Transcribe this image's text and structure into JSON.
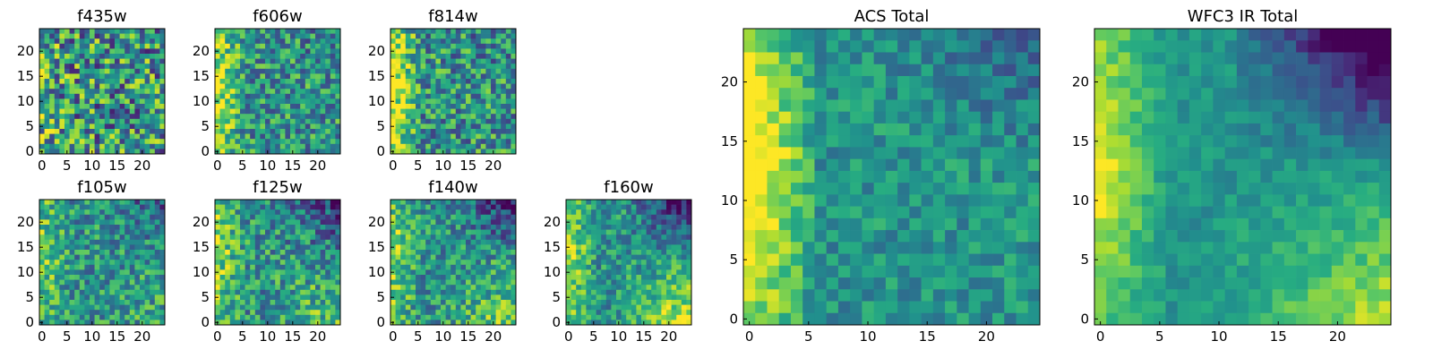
{
  "colormap": "viridis",
  "chart_data": [
    {
      "type": "heatmap",
      "title": "f435w",
      "xticks": [
        "0",
        "5",
        "10",
        "15",
        "20"
      ],
      "yticks": [
        "0",
        "5",
        "10",
        "15",
        "20"
      ],
      "xlim": [
        0,
        25
      ],
      "ylim": [
        0,
        25
      ],
      "grid_size": 25,
      "pattern": {
        "seed": 11,
        "bright_left": 0.1,
        "bright_bottomright": 0.0,
        "dark_topright": 0.0,
        "noise": 0.42
      }
    },
    {
      "type": "heatmap",
      "title": "f606w",
      "xticks": [
        "0",
        "5",
        "10",
        "15",
        "20"
      ],
      "yticks": [
        "0",
        "5",
        "10",
        "15",
        "20"
      ],
      "xlim": [
        0,
        25
      ],
      "ylim": [
        0,
        25
      ],
      "grid_size": 25,
      "pattern": {
        "seed": 23,
        "bright_left": 0.35,
        "bright_bottomright": 0.0,
        "dark_topright": 0.05,
        "noise": 0.3
      }
    },
    {
      "type": "heatmap",
      "title": "f814w",
      "xticks": [
        "0",
        "5",
        "10",
        "15",
        "20"
      ],
      "yticks": [
        "0",
        "5",
        "10",
        "15",
        "20"
      ],
      "xlim": [
        0,
        25
      ],
      "ylim": [
        0,
        25
      ],
      "grid_size": 25,
      "pattern": {
        "seed": 37,
        "bright_left": 0.4,
        "bright_bottomright": 0.0,
        "dark_topright": 0.05,
        "noise": 0.32
      }
    },
    {
      "type": "heatmap",
      "title": "f105w",
      "xticks": [
        "0",
        "5",
        "10",
        "15",
        "20"
      ],
      "yticks": [
        "0",
        "5",
        "10",
        "15",
        "20"
      ],
      "xlim": [
        0,
        25
      ],
      "ylim": [
        0,
        25
      ],
      "grid_size": 25,
      "pattern": {
        "seed": 41,
        "bright_left": 0.2,
        "bright_bottomright": 0.05,
        "dark_topright": 0.15,
        "noise": 0.26
      }
    },
    {
      "type": "heatmap",
      "title": "f125w",
      "xticks": [
        "0",
        "5",
        "10",
        "15",
        "20"
      ],
      "yticks": [
        "0",
        "5",
        "10",
        "15",
        "20"
      ],
      "xlim": [
        0,
        25
      ],
      "ylim": [
        0,
        25
      ],
      "grid_size": 25,
      "pattern": {
        "seed": 53,
        "bright_left": 0.25,
        "bright_bottomright": 0.15,
        "dark_topright": 0.25,
        "noise": 0.28
      }
    },
    {
      "type": "heatmap",
      "title": "f140w",
      "xticks": [
        "0",
        "5",
        "10",
        "15",
        "20"
      ],
      "yticks": [
        "0",
        "5",
        "10",
        "15",
        "20"
      ],
      "xlim": [
        0,
        25
      ],
      "ylim": [
        0,
        25
      ],
      "grid_size": 25,
      "pattern": {
        "seed": 67,
        "bright_left": 0.25,
        "bright_bottomright": 0.2,
        "dark_topright": 0.3,
        "noise": 0.25
      }
    },
    {
      "type": "heatmap",
      "title": "f160w",
      "xticks": [
        "0",
        "5",
        "10",
        "15",
        "20"
      ],
      "yticks": [
        "0",
        "5",
        "10",
        "15",
        "20"
      ],
      "xlim": [
        0,
        25
      ],
      "ylim": [
        0,
        25
      ],
      "grid_size": 25,
      "pattern": {
        "seed": 79,
        "bright_left": 0.3,
        "bright_bottomright": 0.3,
        "dark_topright": 0.35,
        "noise": 0.22
      }
    },
    {
      "type": "heatmap",
      "title": "ACS Total",
      "xticks": [
        "0",
        "5",
        "10",
        "15",
        "20"
      ],
      "yticks": [
        "0",
        "5",
        "10",
        "15",
        "20"
      ],
      "xlim": [
        0,
        25
      ],
      "ylim": [
        0,
        25
      ],
      "grid_size": 25,
      "pattern": {
        "seed": 97,
        "bright_left": 0.5,
        "bright_bottomright": 0.0,
        "dark_topright": 0.15,
        "noise": 0.16
      }
    },
    {
      "type": "heatmap",
      "title": "WFC3 IR Total",
      "xticks": [
        "0",
        "5",
        "10",
        "15",
        "20"
      ],
      "yticks": [
        "0",
        "5",
        "10",
        "15",
        "20"
      ],
      "xlim": [
        0,
        25
      ],
      "ylim": [
        0,
        25
      ],
      "grid_size": 25,
      "pattern": {
        "seed": 101,
        "bright_left": 0.35,
        "bright_bottomright": 0.25,
        "dark_topright": 0.5,
        "noise": 0.1
      }
    }
  ]
}
